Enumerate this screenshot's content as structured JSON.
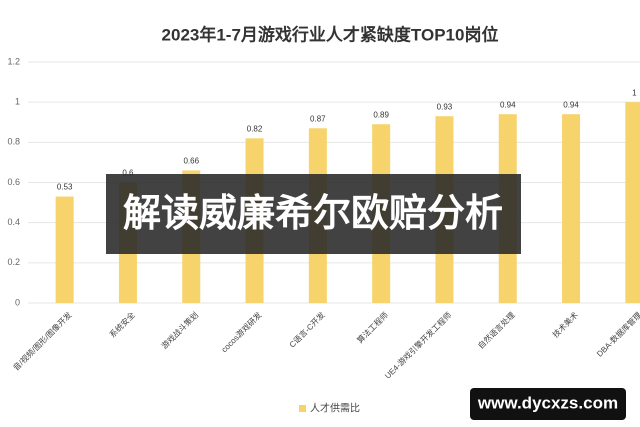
{
  "chart_data": {
    "type": "bar",
    "title": "2023年1-7月游戏行业人才紧缺度TOP10岗位",
    "categories": [
      "音/视频/图形/图像开发",
      "系统安全",
      "游戏战斗策划",
      "cocos游戏研发",
      "C语言-C开发",
      "算法工程师",
      "UE4-游戏引擎开发工程师",
      "自然语言处理",
      "技术美术",
      "DBA-数据库管理"
    ],
    "series": [
      {
        "name": "人才供需比",
        "color": "#f6d36b",
        "values": [
          0.53,
          0.6,
          0.66,
          0.82,
          0.87,
          0.89,
          0.93,
          0.94,
          0.94,
          1
        ]
      }
    ],
    "ylim": [
      0,
      1.2
    ],
    "yticks": [
      0,
      0.2,
      0.4,
      0.6,
      0.8,
      1,
      1.2
    ],
    "grid": true,
    "legend": "bottom"
  },
  "overlay": {
    "headline": "解读威廉希尔欧赔分析",
    "watermark": "www.dycxzs.com"
  }
}
